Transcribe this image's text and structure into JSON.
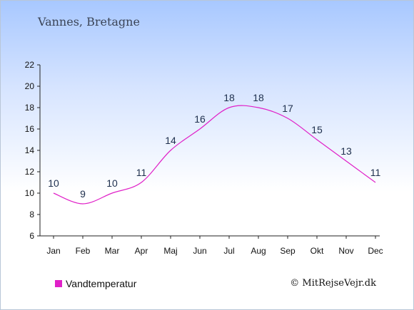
{
  "header": {
    "location": "Vannes, Bretagne"
  },
  "credit": "© MitRejseVejr.dk",
  "colors": {
    "series": "#e020c8",
    "axis": "#222222"
  },
  "chart_data": {
    "type": "line",
    "categories": [
      "Jan",
      "Feb",
      "Mar",
      "Apr",
      "Maj",
      "Jun",
      "Jul",
      "Aug",
      "Sep",
      "Okt",
      "Nov",
      "Dec"
    ],
    "series": [
      {
        "name": "Vandtemperatur",
        "values": [
          10,
          9,
          10,
          11,
          14,
          16,
          18,
          18,
          17,
          15,
          13,
          11
        ]
      }
    ],
    "yticks": [
      6,
      8,
      10,
      12,
      14,
      16,
      18,
      20,
      22
    ],
    "ylim": [
      6,
      22
    ],
    "grid": false,
    "legend_position": "bottom-left"
  }
}
